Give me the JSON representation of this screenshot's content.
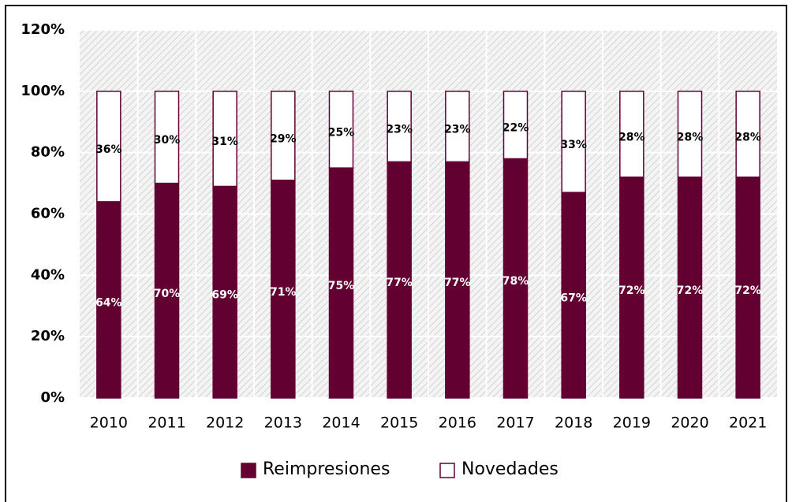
{
  "chart_data": {
    "type": "stacked_bar",
    "categories": [
      "2010",
      "2011",
      "2012",
      "2013",
      "2014",
      "2015",
      "2016",
      "2017",
      "2018",
      "2019",
      "2020",
      "2021"
    ],
    "series": [
      {
        "name": "Reimpresiones",
        "color": "#620032",
        "values": [
          64,
          70,
          69,
          71,
          75,
          77,
          77,
          78,
          67,
          72,
          72,
          72
        ],
        "value_labels": [
          "64%",
          "70%",
          "69%",
          "71%",
          "75%",
          "77%",
          "77%",
          "78%",
          "67%",
          "72%",
          "72%",
          "72%"
        ]
      },
      {
        "name": "Novedades",
        "color": "#ffffff",
        "values": [
          36,
          30,
          31,
          29,
          25,
          23,
          23,
          22,
          33,
          28,
          28,
          28
        ],
        "value_labels": [
          "36%",
          "30%",
          "31%",
          "29%",
          "25%",
          "23%",
          "23%",
          "22%",
          "33%",
          "28%",
          "28%",
          "28%"
        ]
      }
    ],
    "ylim": [
      0,
      120
    ],
    "yticks": [
      {
        "value": 0,
        "label": "0%"
      },
      {
        "value": 20,
        "label": "20%"
      },
      {
        "value": 40,
        "label": "40%"
      },
      {
        "value": 60,
        "label": "60%"
      },
      {
        "value": 80,
        "label": "80%"
      },
      {
        "value": 100,
        "label": "100%"
      },
      {
        "value": 120,
        "label": "120%"
      }
    ],
    "grid": true,
    "legend": "bottom"
  }
}
